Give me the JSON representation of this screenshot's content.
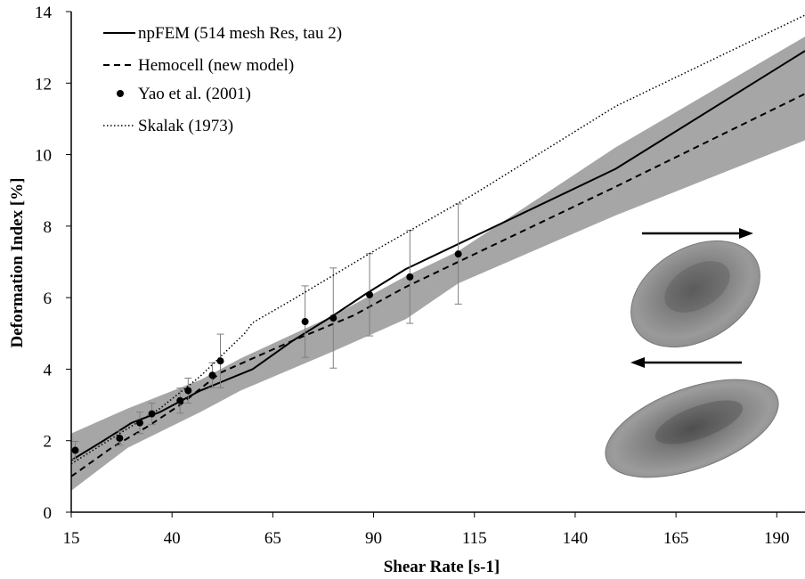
{
  "chart_data": {
    "type": "line",
    "title": "",
    "xlabel": "Shear Rate [s-1]",
    "ylabel": "Deformation Index [%]",
    "xlim": [
      15,
      197
    ],
    "ylim": [
      0,
      14
    ],
    "xticks": [
      15,
      40,
      65,
      90,
      115,
      140,
      165,
      190
    ],
    "yticks": [
      0,
      2,
      4,
      6,
      8,
      10,
      12,
      14
    ],
    "grid": false,
    "legend_position": "top-left",
    "band": {
      "x": [
        15,
        29,
        47,
        57,
        80,
        98,
        111,
        150,
        197
      ],
      "upper": [
        2.2,
        2.9,
        3.7,
        4.3,
        5.5,
        6.6,
        7.3,
        10.2,
        13.3
      ],
      "lower": [
        0.6,
        1.8,
        2.8,
        3.4,
        4.5,
        5.4,
        6.4,
        8.3,
        10.4
      ],
      "color": "#a6a6a6"
    },
    "series": [
      {
        "name": "npFEM (514 mesh Res, tau 2)",
        "style": "solid",
        "x": [
          15,
          23,
          30,
          37,
          47,
          60,
          70,
          80,
          88,
          98,
          111,
          150,
          197
        ],
        "y": [
          1.45,
          2.0,
          2.5,
          2.8,
          3.4,
          4.0,
          4.8,
          5.5,
          6.1,
          6.8,
          7.5,
          9.6,
          12.9
        ]
      },
      {
        "name": "Hemocell (new model)",
        "style": "dashed",
        "x": [
          15,
          25,
          34,
          42,
          52,
          70,
          85,
          98,
          111,
          150,
          197
        ],
        "y": [
          1.0,
          1.8,
          2.4,
          3.0,
          3.9,
          4.8,
          5.5,
          6.3,
          7.0,
          9.1,
          11.7
        ]
      },
      {
        "name": "Yao et al. (2001)",
        "style": "marker",
        "x": [
          16,
          27,
          32,
          35,
          42,
          44,
          50,
          52,
          73,
          80,
          89,
          99,
          111
        ],
        "y": [
          1.73,
          2.07,
          2.5,
          2.75,
          3.12,
          3.4,
          3.83,
          4.23,
          5.33,
          5.43,
          6.08,
          6.58,
          7.22
        ],
        "err": [
          0.25,
          0.2,
          0.3,
          0.3,
          0.35,
          0.35,
          0.35,
          0.75,
          1.0,
          1.4,
          1.15,
          1.3,
          1.4
        ]
      },
      {
        "name": "Skalak (1973)",
        "style": "dotted",
        "x": [
          15,
          27,
          37,
          47,
          58,
          60,
          70,
          90,
          115,
          150,
          197
        ],
        "y": [
          1.35,
          2.2,
          2.9,
          3.8,
          5.0,
          5.3,
          5.95,
          7.3,
          8.9,
          11.35,
          13.9
        ]
      }
    ]
  }
}
